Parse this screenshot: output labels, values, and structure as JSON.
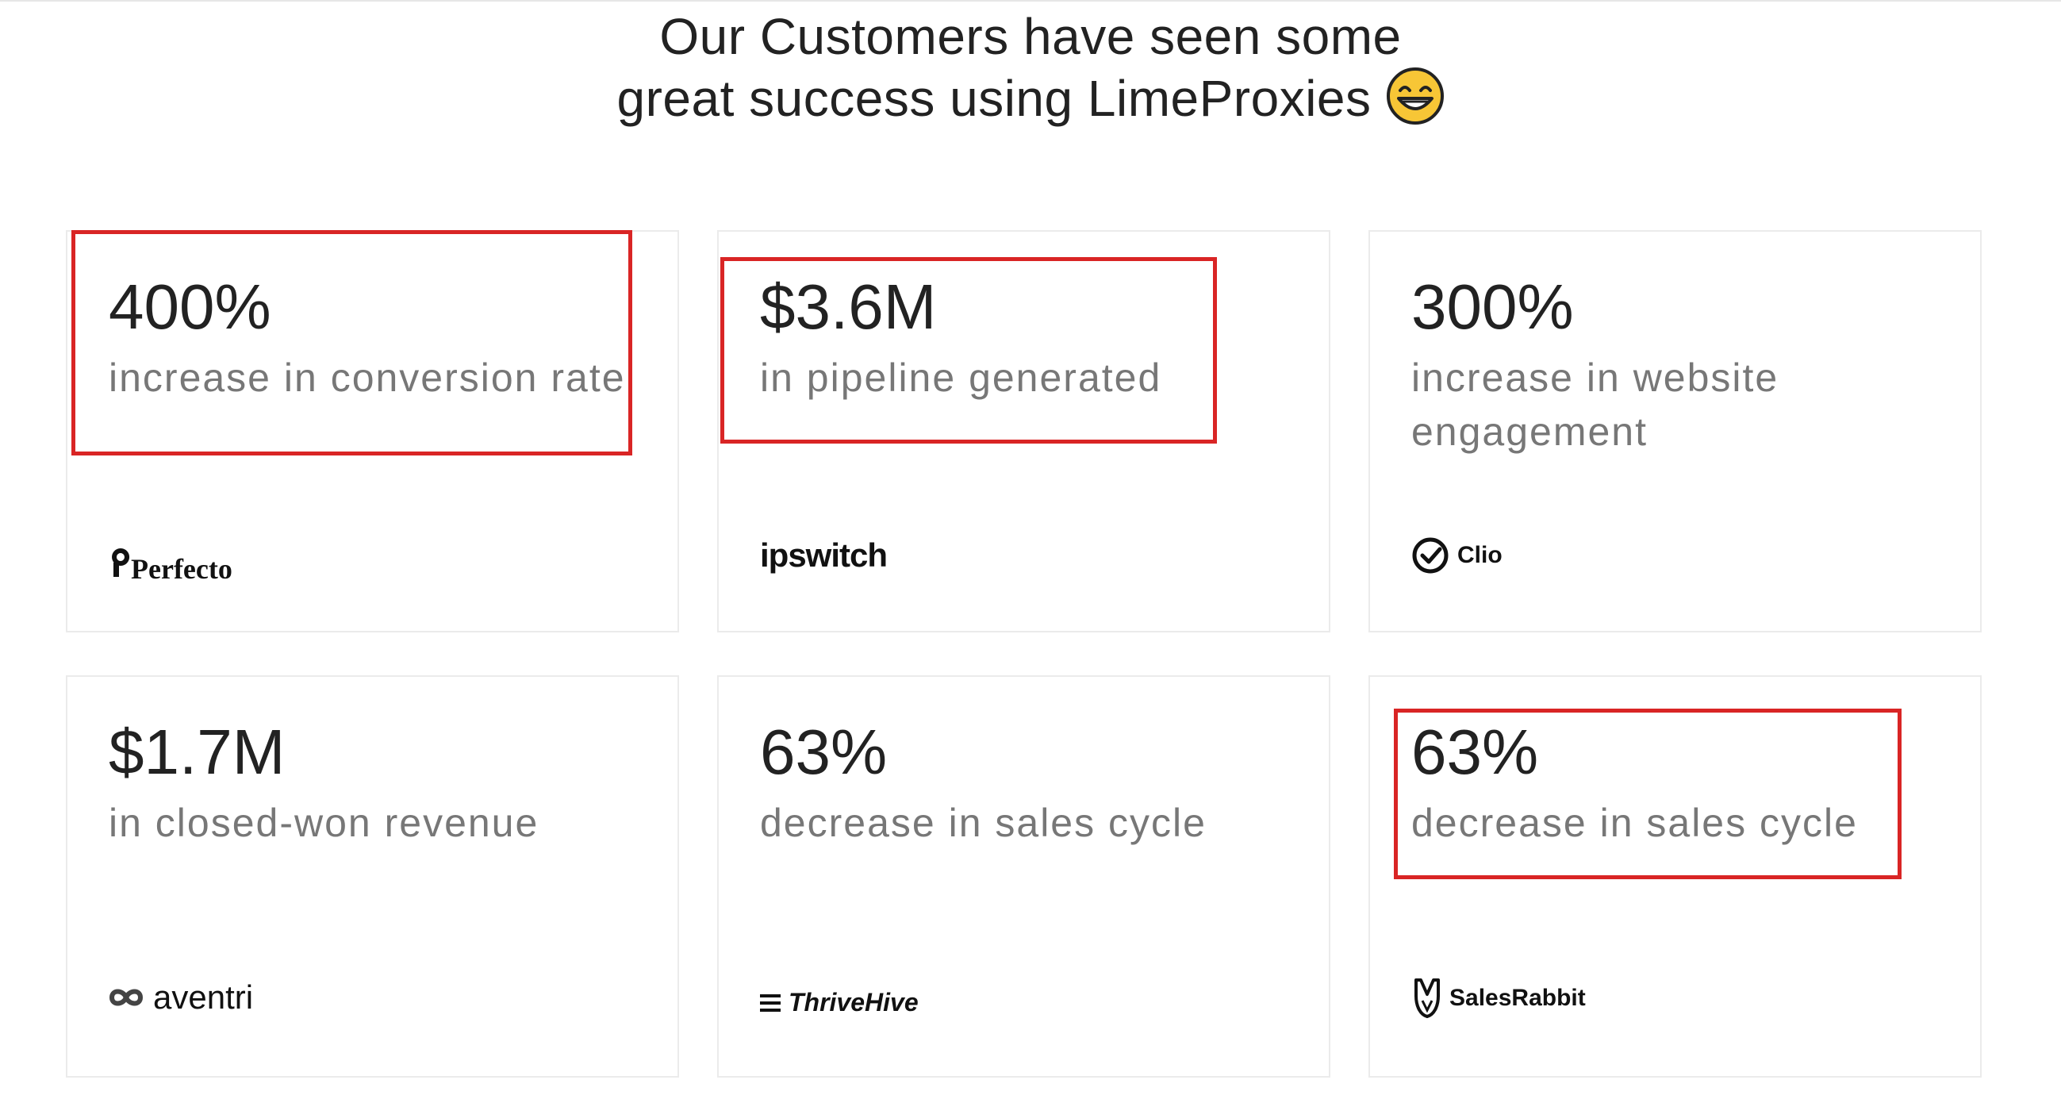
{
  "headline": {
    "line1": "Our Customers have seen some",
    "line2": "great success using LimeProxies",
    "emoji_icon": "grinning-face-emoji"
  },
  "cards": [
    {
      "metric": "400%",
      "description": "increase in conversion rate",
      "logo": "Perfecto",
      "logo_icon": "perfecto-logo"
    },
    {
      "metric": "$3.6M",
      "description": "in pipeline generated",
      "logo": "ipswitch",
      "logo_icon": "ipswitch-logo"
    },
    {
      "metric": "300%",
      "description": "increase in website engagement",
      "logo": "Clio",
      "logo_icon": "clio-logo"
    },
    {
      "metric": "$1.7M",
      "description": "in closed-won revenue",
      "logo": "aventri",
      "logo_icon": "aventri-logo"
    },
    {
      "metric": "63%",
      "description": "decrease in sales cycle",
      "logo": "ThriveHive",
      "logo_icon": "thrivehive-logo"
    },
    {
      "metric": "63%",
      "description": "decrease in sales cycle",
      "logo": "SalesRabbit",
      "logo_icon": "salesrabbit-logo"
    }
  ],
  "colors": {
    "highlight": "#d92525",
    "metric_text": "#222222",
    "description_text": "#777777",
    "card_border": "#ebebeb"
  }
}
